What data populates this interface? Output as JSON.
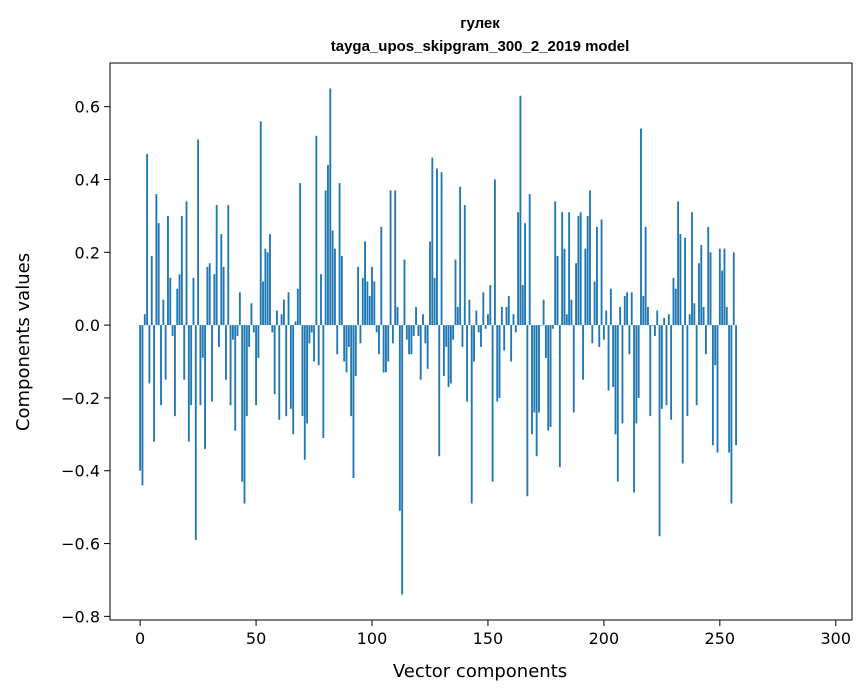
{
  "chart_data": {
    "type": "bar",
    "title": "гулек",
    "subtitle": "tayga_upos_skipgram_300_2_2019 model",
    "xlabel": "Vector components",
    "ylabel": "Components values",
    "xlim": [
      -13,
      307
    ],
    "ylim": [
      -0.81,
      0.72
    ],
    "xticks": [
      0,
      50,
      100,
      150,
      200,
      250,
      300
    ],
    "yticks": [
      -0.8,
      -0.6,
      -0.4,
      -0.2,
      0.0,
      0.2,
      0.4,
      0.6
    ],
    "ytick_labels": [
      "−0.8",
      "−0.6",
      "−0.4",
      "−0.2",
      "0.0",
      "0.2",
      "0.4",
      "0.6"
    ],
    "grid": false,
    "bar_color": "#1f77b4",
    "values": [
      -0.4,
      -0.44,
      0.03,
      0.47,
      -0.16,
      0.19,
      -0.32,
      0.36,
      0.28,
      -0.22,
      0.07,
      -0.15,
      0.3,
      0.13,
      -0.03,
      -0.25,
      0.1,
      0.14,
      0.3,
      -0.15,
      0.34,
      -0.32,
      -0.22,
      0.13,
      -0.59,
      0.51,
      -0.22,
      -0.09,
      -0.34,
      0.16,
      0.17,
      -0.21,
      0.14,
      0.33,
      -0.06,
      0.25,
      0.16,
      -0.15,
      0.33,
      -0.22,
      -0.04,
      -0.29,
      -0.03,
      0.09,
      -0.43,
      -0.49,
      -0.25,
      -0.06,
      0.06,
      -0.02,
      -0.22,
      -0.09,
      0.56,
      0.12,
      0.21,
      0.2,
      0.25,
      -0.02,
      -0.19,
      0.04,
      -0.26,
      0.03,
      0.07,
      -0.25,
      0.09,
      -0.23,
      -0.3,
      0.01,
      0.1,
      0.39,
      -0.25,
      -0.37,
      -0.27,
      -0.05,
      -0.02,
      -0.1,
      0.52,
      -0.11,
      0.14,
      -0.31,
      0.37,
      0.44,
      0.65,
      0.26,
      0.21,
      -0.08,
      0.39,
      0.19,
      -0.1,
      -0.13,
      -0.06,
      -0.25,
      -0.42,
      -0.14,
      0.16,
      -0.05,
      0.13,
      0.23,
      0.12,
      0.08,
      0.16,
      0.12,
      -0.02,
      -0.08,
      0.27,
      -0.13,
      -0.13,
      -0.1,
      0.37,
      -0.05,
      0.37,
      0.05,
      -0.51,
      -0.74,
      0.18,
      -0.04,
      -0.08,
      -0.08,
      -0.03,
      0.05,
      -0.03,
      -0.15,
      0.03,
      -0.05,
      -0.12,
      0.23,
      0.46,
      0.13,
      0.43,
      -0.36,
      0.42,
      -0.14,
      -0.06,
      -0.17,
      -0.16,
      -0.04,
      0.18,
      0.05,
      0.38,
      -0.06,
      0.33,
      -0.21,
      0.07,
      -0.49,
      -0.1,
      0.04,
      -0.02,
      -0.06,
      0.09,
      -0.01,
      0.03,
      0.11,
      -0.43,
      0.4,
      -0.21,
      -0.2,
      0.05,
      -0.07,
      0.05,
      0.08,
      -0.1,
      0.03,
      -0.02,
      0.31,
      0.63,
      0.11,
      0.28,
      -0.47,
      0.36,
      -0.3,
      -0.24,
      -0.36,
      -0.24,
      0.0,
      0.07,
      -0.09,
      -0.29,
      -0.28,
      -0.01,
      0.34,
      0.19,
      -0.39,
      0.31,
      0.21,
      0.03,
      0.31,
      0.07,
      -0.24,
      0.17,
      0.3,
      0.31,
      -0.15,
      0.21,
      0.3,
      0.37,
      -0.05,
      0.12,
      0.27,
      -0.06,
      0.29,
      -0.04,
      0.04,
      -0.18,
      0.1,
      -0.17,
      -0.3,
      -0.43,
      0.05,
      -0.27,
      0.08,
      0.09,
      -0.08,
      0.09,
      -0.46,
      -0.27,
      -0.2,
      0.54,
      0.08,
      0.27,
      0.05,
      -0.25,
      0.0,
      -0.03,
      0.04,
      -0.58,
      -0.23,
      0.02,
      -0.22,
      0.03,
      -0.26,
      0.13,
      0.1,
      0.34,
      0.25,
      -0.38,
      0.24,
      -0.25,
      0.03,
      0.31,
      0.06,
      -0.22,
      0.17,
      0.22,
      0.05,
      -0.08,
      0.27,
      0.2,
      -0.33,
      -0.11,
      -0.35,
      0.21,
      0.15,
      0.21,
      0.05,
      -0.35,
      -0.49,
      0.2,
      -0.33
    ]
  }
}
